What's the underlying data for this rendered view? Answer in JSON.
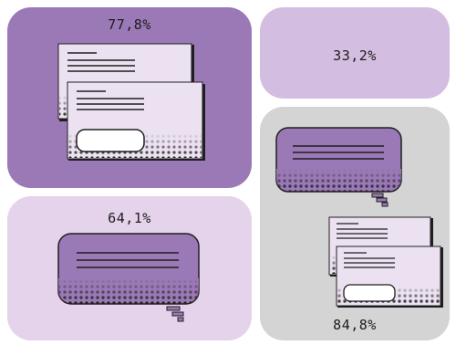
{
  "tiles": [
    {
      "label": "77,8%",
      "icon": "stacked-cards-icon",
      "color": "#9b79b7"
    },
    {
      "label": "33,2%",
      "icon": "none",
      "color": "#d3bde0"
    },
    {
      "label": "64,1%",
      "icon": "speech-bubble-icon",
      "color": "#e4d3ea"
    },
    {
      "label": "84,8%",
      "icon": "speech-bubble-and-cards-icon",
      "color": "#d4d4d4"
    }
  ]
}
